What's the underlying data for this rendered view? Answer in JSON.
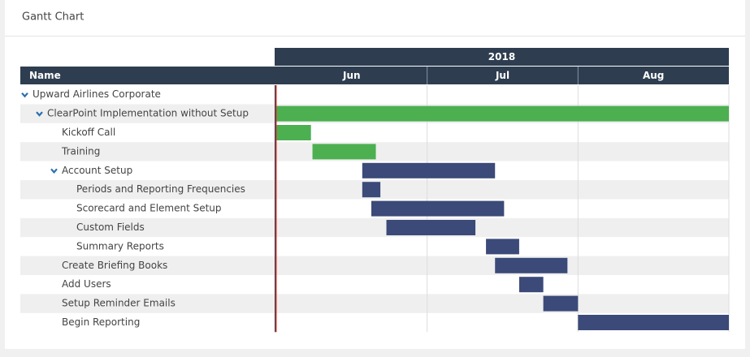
{
  "panel_title": "Gantt Chart",
  "chart_data": {
    "type": "gantt",
    "name_header": "Name",
    "year_label": "2018",
    "months": [
      "Jun",
      "Jul",
      "Aug"
    ],
    "xlim": [
      0,
      3
    ],
    "grid": true,
    "tasks": [
      {
        "name": "Upward Airlines Corporate",
        "level": 0,
        "collapsible": true,
        "start": null,
        "end": null,
        "color": null
      },
      {
        "name": "ClearPoint Implementation without Setup",
        "level": 1,
        "collapsible": true,
        "start": 0,
        "end": 3,
        "color": "#4caf50"
      },
      {
        "name": "Kickoff Call",
        "level": 2,
        "collapsible": false,
        "start": 0,
        "end": 0.23,
        "color": "#4caf50"
      },
      {
        "name": "Training",
        "level": 2,
        "collapsible": false,
        "start": 0.24,
        "end": 0.66,
        "color": "#4caf50"
      },
      {
        "name": "Account Setup",
        "level": 2,
        "collapsible": true,
        "start": 0.57,
        "end": 1.45,
        "color": "#3b4a78"
      },
      {
        "name": "Periods and Reporting Frequencies",
        "level": 3,
        "collapsible": false,
        "start": 0.57,
        "end": 0.69,
        "color": "#3b4a78"
      },
      {
        "name": "Scorecard and Element Setup",
        "level": 3,
        "collapsible": false,
        "start": 0.63,
        "end": 1.51,
        "color": "#3b4a78"
      },
      {
        "name": "Custom Fields",
        "level": 3,
        "collapsible": false,
        "start": 0.73,
        "end": 1.32,
        "color": "#3b4a78"
      },
      {
        "name": "Summary Reports",
        "level": 3,
        "collapsible": false,
        "start": 1.39,
        "end": 1.61,
        "color": "#3b4a78"
      },
      {
        "name": "Create Briefing Books",
        "level": 2,
        "collapsible": false,
        "start": 1.45,
        "end": 1.93,
        "color": "#3b4a78"
      },
      {
        "name": "Add Users",
        "level": 2,
        "collapsible": false,
        "start": 1.61,
        "end": 1.77,
        "color": "#3b4a78"
      },
      {
        "name": "Setup Reminder Emails",
        "level": 2,
        "collapsible": false,
        "start": 1.77,
        "end": 2,
        "color": "#3b4a78"
      },
      {
        "name": "Begin Reporting",
        "level": 2,
        "collapsible": false,
        "start": 2,
        "end": 3,
        "color": "#3b4a78"
      }
    ]
  }
}
